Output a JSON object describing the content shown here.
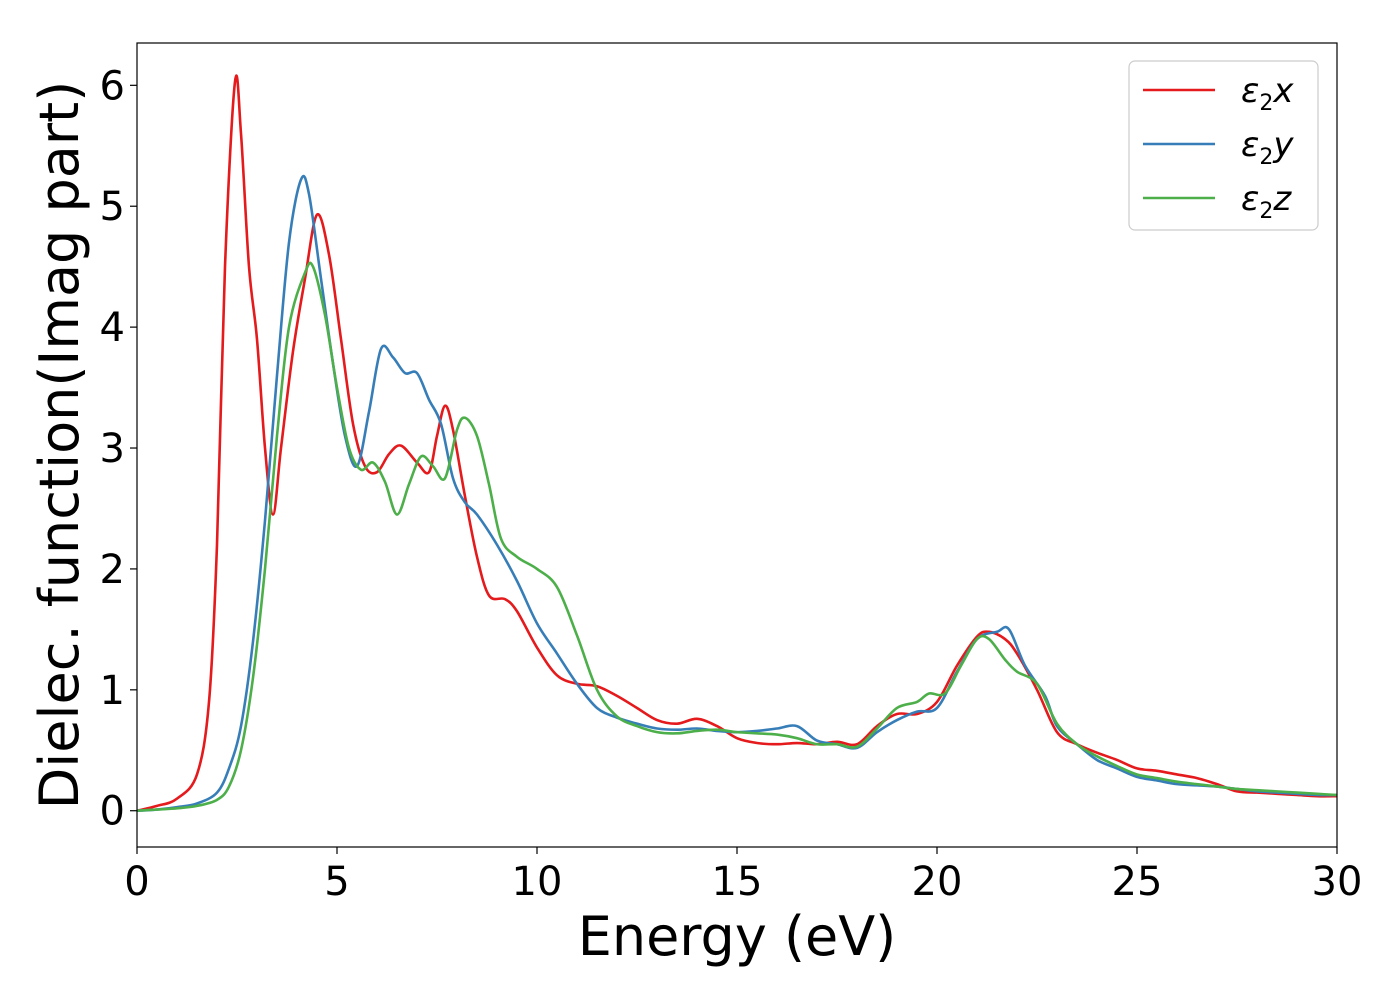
{
  "chart_data": {
    "type": "line",
    "title": "",
    "xlabel": "Energy (eV)",
    "ylabel": "Dielec. function(Imag part)",
    "xlim": [
      0,
      30
    ],
    "ylim": [
      -0.3,
      6.35
    ],
    "xticks": [
      "0",
      "5",
      "10",
      "15",
      "20",
      "25",
      "30"
    ],
    "yticks": [
      "0",
      "1",
      "2",
      "3",
      "4",
      "5",
      "6"
    ],
    "grid": false,
    "legend_position": "top-right",
    "series": [
      {
        "name": "ε2x",
        "legend_base": "ε",
        "legend_sub": "2",
        "legend_var": "x",
        "color": "#e41a1c",
        "points": [
          [
            0,
            0
          ],
          [
            0.5,
            0.04
          ],
          [
            1,
            0.1
          ],
          [
            1.5,
            0.3
          ],
          [
            1.8,
            0.9
          ],
          [
            2.0,
            2.2
          ],
          [
            2.2,
            4.5
          ],
          [
            2.45,
            6.03
          ],
          [
            2.6,
            5.6
          ],
          [
            2.8,
            4.5
          ],
          [
            3.0,
            3.9
          ],
          [
            3.2,
            3.0
          ],
          [
            3.4,
            2.45
          ],
          [
            3.6,
            3.0
          ],
          [
            3.9,
            3.8
          ],
          [
            4.2,
            4.4
          ],
          [
            4.5,
            4.93
          ],
          [
            4.8,
            4.6
          ],
          [
            5.1,
            3.9
          ],
          [
            5.4,
            3.2
          ],
          [
            5.7,
            2.85
          ],
          [
            6.0,
            2.8
          ],
          [
            6.3,
            2.95
          ],
          [
            6.6,
            3.02
          ],
          [
            7.0,
            2.88
          ],
          [
            7.3,
            2.8
          ],
          [
            7.5,
            3.1
          ],
          [
            7.7,
            3.35
          ],
          [
            7.9,
            3.15
          ],
          [
            8.2,
            2.6
          ],
          [
            8.5,
            2.1
          ],
          [
            8.8,
            1.78
          ],
          [
            9.2,
            1.75
          ],
          [
            9.5,
            1.65
          ],
          [
            10.0,
            1.35
          ],
          [
            10.5,
            1.12
          ],
          [
            11.0,
            1.05
          ],
          [
            11.5,
            1.03
          ],
          [
            12.0,
            0.95
          ],
          [
            12.5,
            0.85
          ],
          [
            13.0,
            0.75
          ],
          [
            13.5,
            0.72
          ],
          [
            14.0,
            0.76
          ],
          [
            14.5,
            0.7
          ],
          [
            15.0,
            0.6
          ],
          [
            15.5,
            0.56
          ],
          [
            16.0,
            0.55
          ],
          [
            16.5,
            0.56
          ],
          [
            17.0,
            0.55
          ],
          [
            17.5,
            0.57
          ],
          [
            18.0,
            0.55
          ],
          [
            18.5,
            0.7
          ],
          [
            19.0,
            0.8
          ],
          [
            19.5,
            0.8
          ],
          [
            20.0,
            0.9
          ],
          [
            20.5,
            1.2
          ],
          [
            21.0,
            1.44
          ],
          [
            21.3,
            1.48
          ],
          [
            21.7,
            1.42
          ],
          [
            22.0,
            1.3
          ],
          [
            22.5,
            1.0
          ],
          [
            23.0,
            0.65
          ],
          [
            23.5,
            0.55
          ],
          [
            24.0,
            0.48
          ],
          [
            24.5,
            0.42
          ],
          [
            25.0,
            0.35
          ],
          [
            25.5,
            0.33
          ],
          [
            26.0,
            0.3
          ],
          [
            26.5,
            0.27
          ],
          [
            27.0,
            0.22
          ],
          [
            27.5,
            0.16
          ],
          [
            28.0,
            0.15
          ],
          [
            28.5,
            0.14
          ],
          [
            29.0,
            0.13
          ],
          [
            29.5,
            0.12
          ],
          [
            30.0,
            0.12
          ]
        ]
      },
      {
        "name": "ε2y",
        "legend_base": "ε",
        "legend_sub": "2",
        "legend_var": "y",
        "color": "#377eb8",
        "points": [
          [
            0,
            0
          ],
          [
            0.5,
            0.01
          ],
          [
            1,
            0.03
          ],
          [
            1.5,
            0.06
          ],
          [
            2.0,
            0.15
          ],
          [
            2.3,
            0.35
          ],
          [
            2.6,
            0.7
          ],
          [
            2.9,
            1.4
          ],
          [
            3.2,
            2.4
          ],
          [
            3.5,
            3.6
          ],
          [
            3.8,
            4.7
          ],
          [
            4.1,
            5.22
          ],
          [
            4.3,
            5.1
          ],
          [
            4.6,
            4.4
          ],
          [
            4.9,
            3.7
          ],
          [
            5.2,
            3.1
          ],
          [
            5.5,
            2.85
          ],
          [
            5.8,
            3.3
          ],
          [
            6.1,
            3.82
          ],
          [
            6.4,
            3.75
          ],
          [
            6.7,
            3.62
          ],
          [
            7.0,
            3.62
          ],
          [
            7.3,
            3.4
          ],
          [
            7.6,
            3.2
          ],
          [
            7.9,
            2.75
          ],
          [
            8.2,
            2.55
          ],
          [
            8.5,
            2.45
          ],
          [
            9.0,
            2.2
          ],
          [
            9.5,
            1.9
          ],
          [
            10.0,
            1.55
          ],
          [
            10.5,
            1.3
          ],
          [
            11.0,
            1.05
          ],
          [
            11.5,
            0.85
          ],
          [
            12.0,
            0.77
          ],
          [
            12.5,
            0.72
          ],
          [
            13.0,
            0.68
          ],
          [
            13.5,
            0.67
          ],
          [
            14.0,
            0.68
          ],
          [
            14.5,
            0.66
          ],
          [
            15.0,
            0.65
          ],
          [
            15.5,
            0.66
          ],
          [
            16.0,
            0.68
          ],
          [
            16.5,
            0.7
          ],
          [
            17.0,
            0.58
          ],
          [
            17.5,
            0.55
          ],
          [
            18.0,
            0.52
          ],
          [
            18.5,
            0.65
          ],
          [
            19.0,
            0.75
          ],
          [
            19.5,
            0.82
          ],
          [
            20.0,
            0.85
          ],
          [
            20.5,
            1.15
          ],
          [
            21.0,
            1.42
          ],
          [
            21.5,
            1.48
          ],
          [
            21.8,
            1.5
          ],
          [
            22.2,
            1.2
          ],
          [
            22.7,
            0.95
          ],
          [
            23.0,
            0.7
          ],
          [
            23.5,
            0.55
          ],
          [
            24.0,
            0.42
          ],
          [
            24.5,
            0.35
          ],
          [
            25.0,
            0.28
          ],
          [
            25.5,
            0.25
          ],
          [
            26.0,
            0.22
          ],
          [
            26.5,
            0.21
          ],
          [
            27.0,
            0.2
          ],
          [
            27.5,
            0.18
          ],
          [
            28.0,
            0.16
          ],
          [
            28.5,
            0.15
          ],
          [
            29.0,
            0.14
          ],
          [
            29.5,
            0.13
          ],
          [
            30.0,
            0.13
          ]
        ]
      },
      {
        "name": "ε2z",
        "legend_base": "ε",
        "legend_sub": "2",
        "legend_var": "z",
        "color": "#4daf4a",
        "points": [
          [
            0,
            0
          ],
          [
            0.5,
            0.01
          ],
          [
            1,
            0.02
          ],
          [
            1.5,
            0.04
          ],
          [
            2.0,
            0.09
          ],
          [
            2.3,
            0.2
          ],
          [
            2.6,
            0.5
          ],
          [
            2.9,
            1.1
          ],
          [
            3.2,
            2.0
          ],
          [
            3.5,
            3.1
          ],
          [
            3.8,
            4.0
          ],
          [
            4.2,
            4.45
          ],
          [
            4.4,
            4.5
          ],
          [
            4.7,
            4.1
          ],
          [
            5.0,
            3.5
          ],
          [
            5.3,
            3.0
          ],
          [
            5.6,
            2.82
          ],
          [
            5.9,
            2.88
          ],
          [
            6.2,
            2.72
          ],
          [
            6.5,
            2.45
          ],
          [
            6.8,
            2.7
          ],
          [
            7.1,
            2.93
          ],
          [
            7.4,
            2.85
          ],
          [
            7.7,
            2.75
          ],
          [
            8.0,
            3.15
          ],
          [
            8.2,
            3.25
          ],
          [
            8.5,
            3.1
          ],
          [
            8.8,
            2.7
          ],
          [
            9.1,
            2.25
          ],
          [
            9.5,
            2.1
          ],
          [
            10.0,
            2.0
          ],
          [
            10.5,
            1.85
          ],
          [
            11.0,
            1.45
          ],
          [
            11.5,
            1.0
          ],
          [
            12.0,
            0.78
          ],
          [
            12.5,
            0.7
          ],
          [
            13.0,
            0.65
          ],
          [
            13.5,
            0.64
          ],
          [
            14.0,
            0.66
          ],
          [
            14.5,
            0.67
          ],
          [
            15.0,
            0.65
          ],
          [
            15.5,
            0.64
          ],
          [
            16.0,
            0.63
          ],
          [
            16.5,
            0.6
          ],
          [
            17.0,
            0.55
          ],
          [
            17.5,
            0.55
          ],
          [
            18.0,
            0.53
          ],
          [
            18.5,
            0.68
          ],
          [
            19.0,
            0.85
          ],
          [
            19.5,
            0.9
          ],
          [
            19.8,
            0.97
          ],
          [
            20.2,
            0.97
          ],
          [
            20.6,
            1.2
          ],
          [
            21.0,
            1.42
          ],
          [
            21.3,
            1.42
          ],
          [
            21.7,
            1.25
          ],
          [
            22.0,
            1.15
          ],
          [
            22.5,
            1.05
          ],
          [
            23.0,
            0.72
          ],
          [
            23.5,
            0.55
          ],
          [
            24.0,
            0.45
          ],
          [
            24.5,
            0.37
          ],
          [
            25.0,
            0.3
          ],
          [
            25.5,
            0.27
          ],
          [
            26.0,
            0.24
          ],
          [
            26.5,
            0.22
          ],
          [
            27.0,
            0.2
          ],
          [
            27.5,
            0.18
          ],
          [
            28.0,
            0.17
          ],
          [
            28.5,
            0.16
          ],
          [
            29.0,
            0.15
          ],
          [
            29.5,
            0.14
          ],
          [
            30.0,
            0.13
          ]
        ]
      }
    ]
  }
}
